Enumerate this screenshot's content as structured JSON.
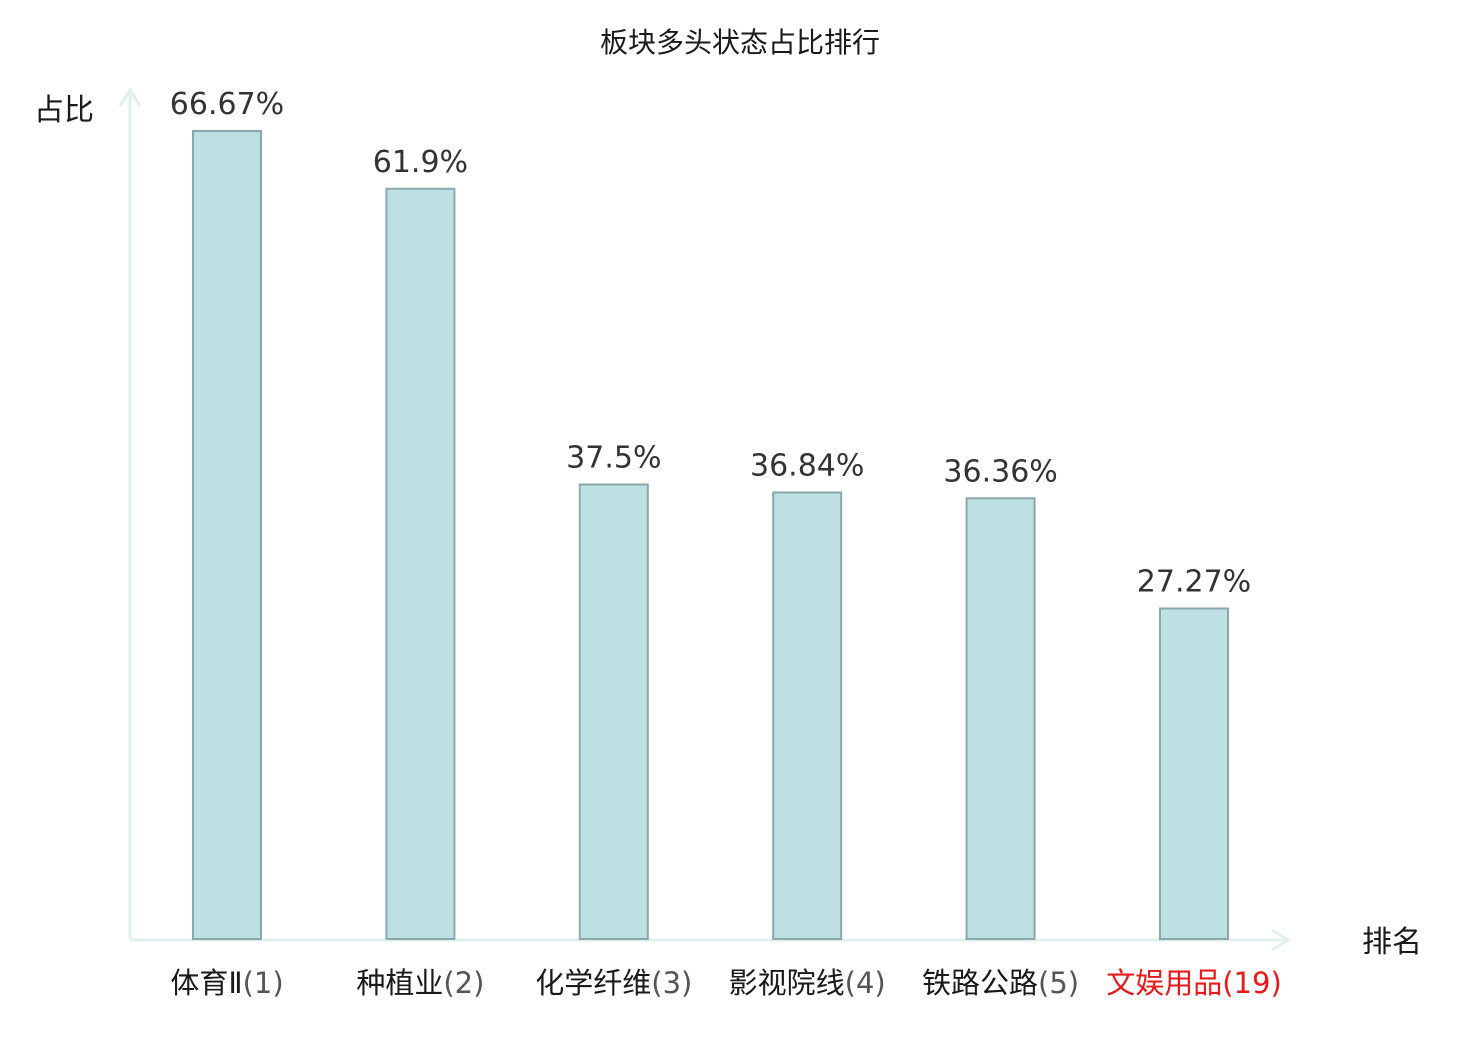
{
  "chart_data": {
    "type": "bar",
    "title": "板块多头状态占比排行",
    "ylabel": "占比",
    "xlabel": "排名",
    "ylim": [
      0,
      66.67
    ],
    "grid": false,
    "categories": [
      {
        "name": "体育Ⅱ",
        "rank": "(1)",
        "highlight": false
      },
      {
        "name": "种植业",
        "rank": "(2)",
        "highlight": false
      },
      {
        "name": "化学纤维",
        "rank": "(3)",
        "highlight": false
      },
      {
        "name": "影视院线",
        "rank": "(4)",
        "highlight": false
      },
      {
        "name": "铁路公路",
        "rank": "(5)",
        "highlight": false
      },
      {
        "name": "文娱用品",
        "rank": "(19)",
        "highlight": true
      }
    ],
    "values": [
      66.67,
      61.9,
      37.5,
      36.84,
      36.36,
      27.27
    ],
    "value_labels": [
      "66.67%",
      "61.9%",
      "37.5%",
      "36.84%",
      "36.36%",
      "27.27%"
    ]
  },
  "colors": {
    "bar_fill": "#bde0e3",
    "bar_stroke": "#8aa8ac",
    "axis": "#dff0ee",
    "category_text": "#1a1a1a",
    "rank_text": "#555555",
    "highlight_text": "#e8191b"
  }
}
